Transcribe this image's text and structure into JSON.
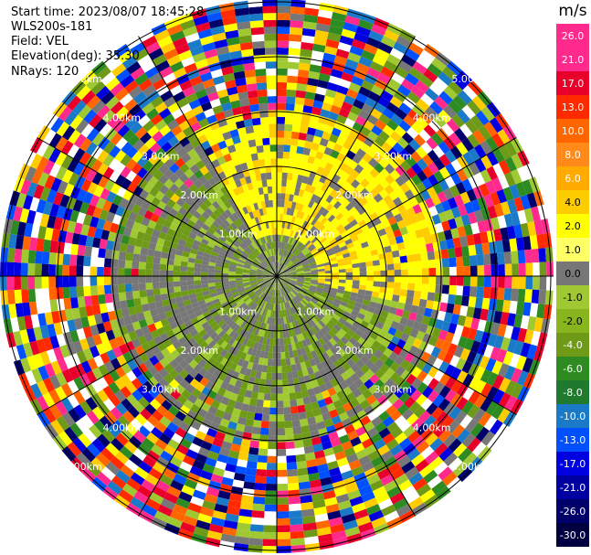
{
  "header": {
    "start_time": "Start time: 2023/08/07 18:45:28",
    "instrument": "WLS200s-181",
    "field": "Field: VEL",
    "elevation": "Elevation(deg): 35.30",
    "nrays": "NRays: 120"
  },
  "range_ring_labels": [
    "1.00km",
    "2.00km",
    "3.00km",
    "4.00km",
    "5.00km"
  ],
  "colorbar": {
    "unit": "m/s",
    "ticks": [
      "26.0",
      "21.0",
      "17.0",
      "13.0",
      "10.0",
      "8.0",
      "6.0",
      "4.0",
      "2.0",
      "1.0",
      "0.0",
      "-1.0",
      "-2.0",
      "-4.0",
      "-6.0",
      "-8.0",
      "-10.0",
      "-13.0",
      "-17.0",
      "-21.0",
      "-26.0",
      "-30.0"
    ],
    "colors": [
      "#ff2a8c",
      "#ff2a8c",
      "#e8002a",
      "#ff2a00",
      "#ff6600",
      "#ff8a1a",
      "#ffaa00",
      "#ffcc00",
      "#ffff00",
      "#ffff66",
      "#777777",
      "#a0c832",
      "#88b41e",
      "#6e9a18",
      "#2e8b22",
      "#1f7a2e",
      "#1a7ac8",
      "#0050ff",
      "#0000e0",
      "#0000a0",
      "#00006a",
      "#000040"
    ]
  }
}
